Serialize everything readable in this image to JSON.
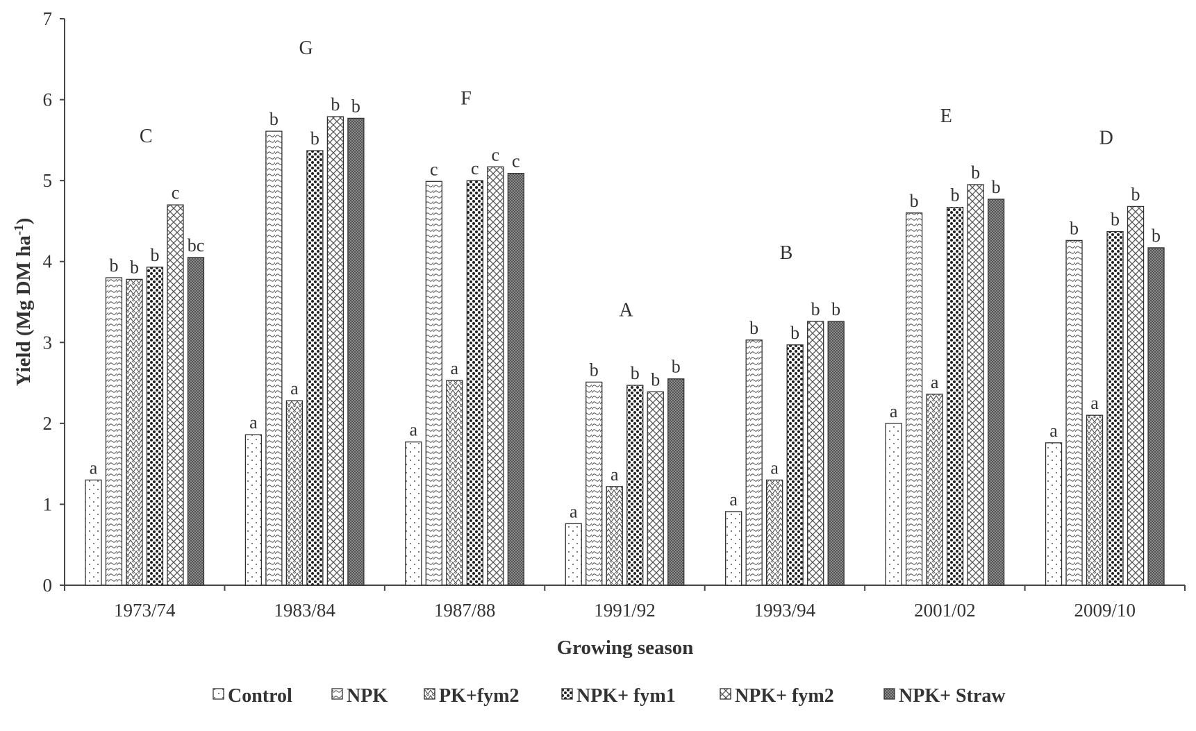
{
  "chart_data": {
    "type": "bar",
    "title": "",
    "xlabel": "Growing season",
    "ylabel_main": "Yield (Mg DM ha",
    "ylabel_sup": "-1",
    "ylabel_close": ")",
    "ylim": [
      0,
      7
    ],
    "yticks": [
      "0",
      "1",
      "2",
      "3",
      "4",
      "5",
      "6",
      "7"
    ],
    "categories": [
      "1973/74",
      "1983/84",
      "1987/88",
      "1991/92",
      "1993/94",
      "2001/02",
      "2009/10"
    ],
    "group_letters": [
      "C",
      "G",
      "F",
      "A",
      "B",
      "E",
      "D"
    ],
    "series": [
      {
        "name": "Control",
        "pattern": "dots",
        "values": [
          1.3,
          1.86,
          1.77,
          0.76,
          0.91,
          2.0,
          1.76
        ],
        "letters": [
          "a",
          "a",
          "a",
          "a",
          "a",
          "a",
          "a"
        ]
      },
      {
        "name": "NPK",
        "pattern": "wave",
        "values": [
          3.8,
          5.61,
          4.99,
          2.51,
          3.03,
          4.6,
          4.26
        ],
        "letters": [
          "b",
          "b",
          "c",
          "b",
          "b",
          "b",
          "b"
        ]
      },
      {
        "name": "PK+fym2",
        "pattern": "zigzag",
        "values": [
          3.78,
          2.28,
          2.53,
          1.22,
          1.3,
          2.36,
          2.1
        ],
        "letters": [
          "b",
          "a",
          "a",
          "a",
          "a",
          "a",
          "a"
        ]
      },
      {
        "name": "NPK+ fym1",
        "pattern": "darkdots",
        "values": [
          3.93,
          5.37,
          5.0,
          2.47,
          2.97,
          4.67,
          4.37
        ],
        "letters": [
          "b",
          "b",
          "c",
          "b",
          "b",
          "b",
          "b"
        ]
      },
      {
        "name": "NPK+ fym2",
        "pattern": "cross",
        "values": [
          4.7,
          5.79,
          5.17,
          2.39,
          3.26,
          4.95,
          4.68
        ],
        "letters": [
          "c",
          "b",
          "c",
          "b",
          "b",
          "b",
          "b"
        ]
      },
      {
        "name": "NPK+ Straw",
        "pattern": "dense",
        "values": [
          4.05,
          5.77,
          5.09,
          2.55,
          3.26,
          4.77,
          4.17
        ],
        "letters": [
          "bc",
          "b",
          "c",
          "b",
          "b",
          "b",
          "b"
        ]
      }
    ],
    "legend_position": "bottom",
    "grid": false
  }
}
